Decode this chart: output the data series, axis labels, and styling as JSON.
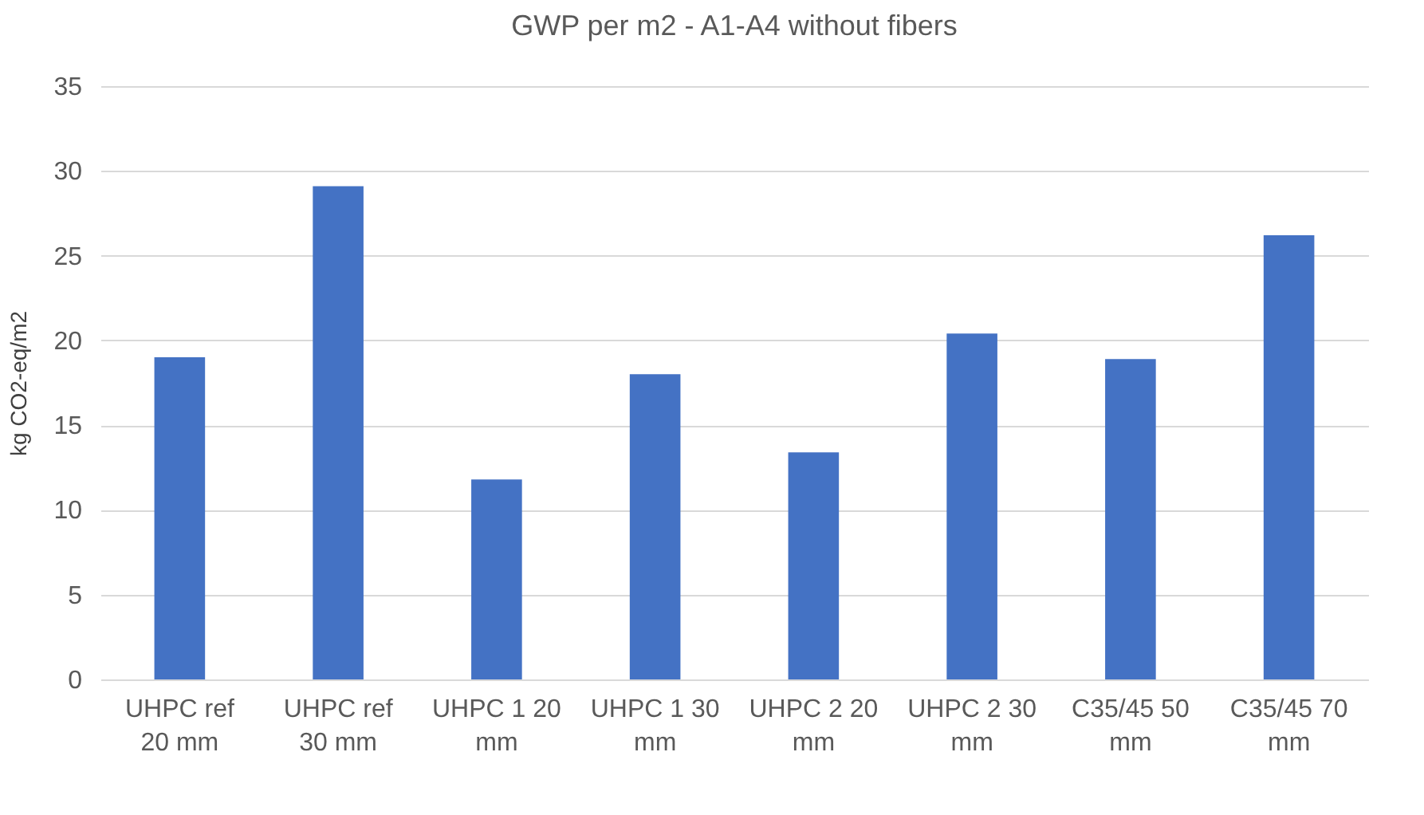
{
  "chart_data": {
    "type": "bar",
    "title": "GWP per m2 - A1-A4 without fibers",
    "ylabel": "kg CO2-eq/m2",
    "categories": [
      "UHPC ref 20 mm",
      "UHPC ref 30 mm",
      "UHPC 1 20 mm",
      "UHPC 1 30 mm",
      "UHPC 2 20 mm",
      "UHPC 2 30 mm",
      "C35/45 50 mm",
      "C35/45 70 mm"
    ],
    "values": [
      19.0,
      29.1,
      11.8,
      18.0,
      13.4,
      20.4,
      18.9,
      26.2
    ],
    "color": "#4472c4",
    "ylim": [
      0,
      35
    ],
    "yticks": [
      0,
      5,
      10,
      15,
      20,
      25,
      30,
      35
    ],
    "grid": "y"
  }
}
